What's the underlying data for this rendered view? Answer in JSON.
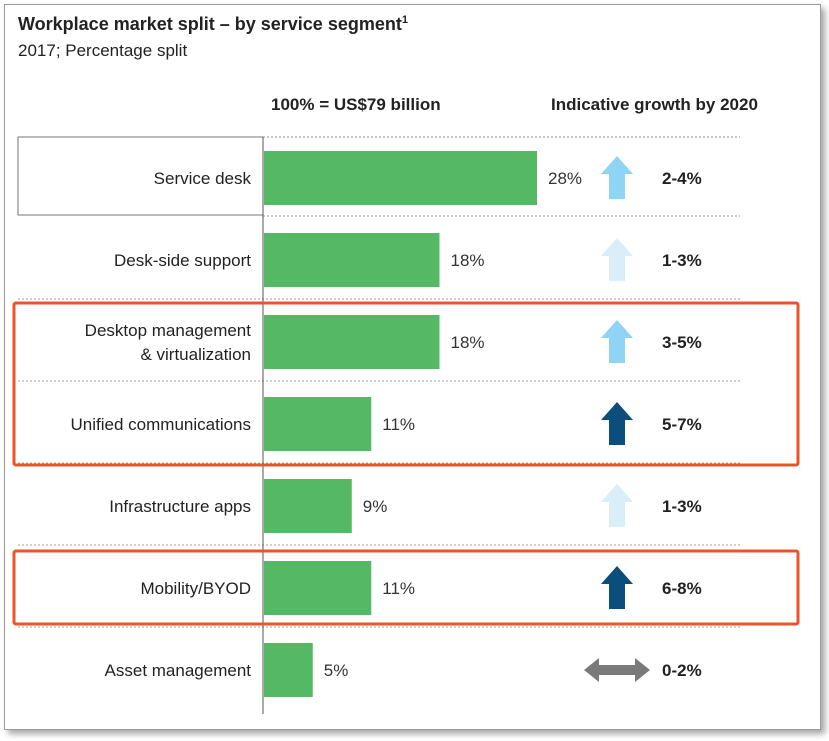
{
  "header": {
    "title": "Workplace market split – by service segment",
    "title_footnote": "1",
    "subtitle": "2017; Percentage split",
    "total_label": "100% = US$79 billion",
    "growth_header": "Indicative growth by 2020"
  },
  "chart_data": {
    "type": "bar",
    "orientation": "horizontal",
    "title": "Workplace market split – by service segment",
    "subtitle": "2017; Percentage split",
    "categories": [
      "Service desk",
      "Desk-side support",
      "Desktop management\n& virtualization",
      "Unified communications",
      "Infrastructure apps",
      "Mobility/BYOD",
      "Asset management"
    ],
    "values": [
      28,
      18,
      18,
      11,
      9,
      11,
      5
    ],
    "value_labels": [
      "28%",
      "18%",
      "18%",
      "11%",
      "9%",
      "11%",
      "5%"
    ],
    "unit": "%",
    "xlim": [
      0,
      28
    ],
    "growth": [
      "2-4%",
      "1-3%",
      "3-5%",
      "5-7%",
      "1-3%",
      "6-8%",
      "0-2%"
    ],
    "growth_arrow": [
      "up-medium",
      "up-light",
      "up-medium",
      "up-dark",
      "up-light",
      "up-dark",
      "horizontal"
    ],
    "highlighted_groups": [
      [
        "Desktop management\n& virtualization",
        "Unified communications"
      ],
      [
        "Mobility/BYOD"
      ]
    ],
    "colors": {
      "bar": "#54b865",
      "arrow_up_medium": "#8fd3f5",
      "arrow_up_light": "#d9eef9",
      "arrow_up_dark": "#0b4e7c",
      "arrow_horizontal": "#7a7a7a",
      "highlight": "#e8552a"
    }
  }
}
